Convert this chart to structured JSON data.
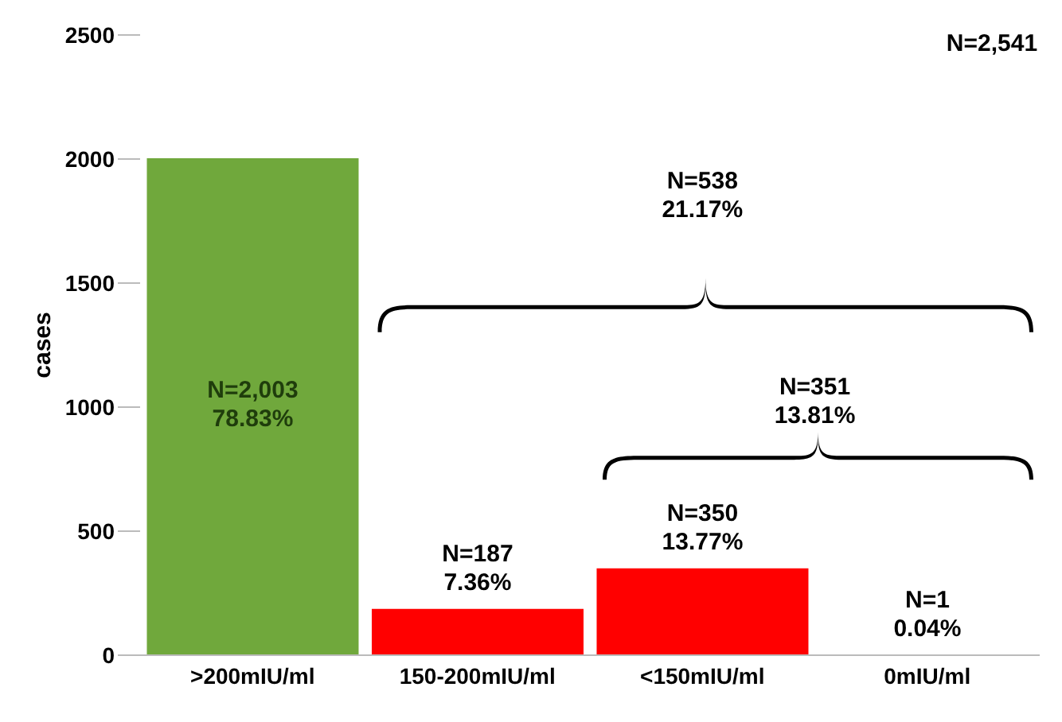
{
  "chart_data": {
    "type": "bar",
    "ylabel": "cases",
    "categories": [
      ">200mIU/ml",
      "150-200mIU/ml",
      "<150mIU/ml",
      "0mIU/ml"
    ],
    "values": [
      2003,
      187,
      350,
      1
    ],
    "colors": [
      "#70a83c",
      "#ff0000",
      "#ff0000",
      "#ff0000"
    ],
    "value_labels": [
      "N=2,003\n78.83%",
      "N=187\n7.36%",
      "N=350\n13.77%",
      "N=1\n0.04%"
    ],
    "ylim": [
      0,
      2500
    ],
    "yticks": [
      0,
      500,
      1000,
      1500,
      2000,
      2500
    ],
    "grid": false,
    "annotations": [
      "N=2,541",
      "N=538\n21.17%",
      "N=351\n13.81%"
    ]
  }
}
